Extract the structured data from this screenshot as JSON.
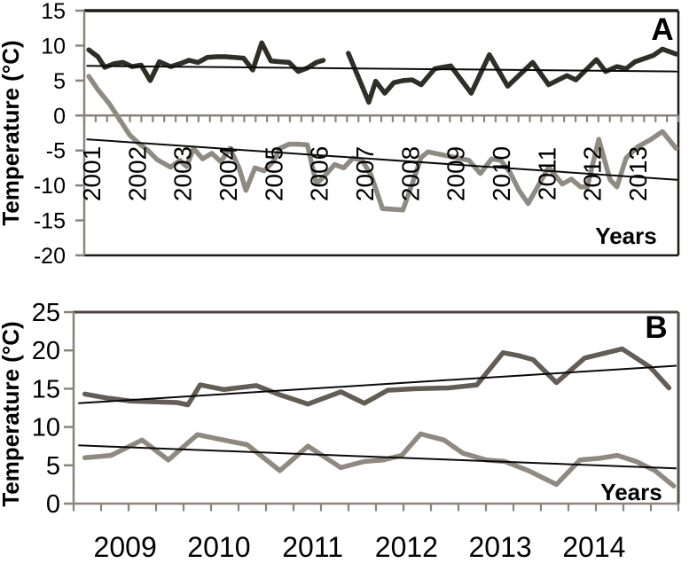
{
  "page": {
    "background": "#ffffff"
  },
  "figure": {
    "ylabel": "Temperature (°C)",
    "xlabel": "Years",
    "panel_letters": [
      "A",
      "B"
    ]
  },
  "chart_data": [
    {
      "type": "line",
      "panel_label": "A",
      "ylabel": "Temperature (°C)",
      "xlabel": "Years",
      "ylim": [
        -20,
        15
      ],
      "yticks": [
        15,
        10,
        5,
        0,
        -5,
        -10,
        -15,
        -20
      ],
      "xlim": [
        2000.9,
        2013.95
      ],
      "year_labels": [
        "2001",
        "2002",
        "2003",
        "2004",
        "2005",
        "2006",
        "2007",
        "2008",
        "2009",
        "2010",
        "2011",
        "2012",
        "2013"
      ],
      "x_axis_value": 0,
      "grid": false,
      "legend": null,
      "axis_color": "#8a8479",
      "series": [
        {
          "name": "upper-dark-temperature-line",
          "color": "#2f2f28",
          "width": 5.5,
          "points": [
            [
              2001.0,
              9.4
            ],
            [
              2001.2,
              8.4
            ],
            [
              2001.35,
              6.9
            ],
            [
              2001.55,
              7.4
            ],
            [
              2001.75,
              7.6
            ],
            [
              2001.95,
              7.0
            ],
            [
              2002.15,
              7.2
            ],
            [
              2002.35,
              5.0
            ],
            [
              2002.55,
              7.7
            ],
            [
              2002.8,
              7.0
            ],
            [
              2003.0,
              7.4
            ],
            [
              2003.2,
              7.9
            ],
            [
              2003.4,
              7.6
            ],
            [
              2003.6,
              8.3
            ],
            [
              2003.8,
              8.4
            ],
            [
              2004.0,
              8.4
            ],
            [
              2004.2,
              8.3
            ],
            [
              2004.4,
              8.2
            ],
            [
              2004.6,
              6.5
            ],
            [
              2004.8,
              10.4
            ],
            [
              2005.0,
              7.8
            ],
            [
              2005.2,
              7.7
            ],
            [
              2005.4,
              7.6
            ],
            [
              2005.6,
              6.3
            ],
            [
              2005.8,
              6.8
            ],
            [
              2006.0,
              7.6
            ],
            [
              2006.15,
              7.9
            ],
            null,
            [
              2006.7,
              8.9
            ],
            [
              2007.15,
              1.9
            ],
            [
              2007.3,
              4.9
            ],
            [
              2007.5,
              3.2
            ],
            [
              2007.7,
              4.7
            ],
            [
              2007.9,
              5.0
            ],
            [
              2008.1,
              5.1
            ],
            [
              2008.3,
              4.4
            ],
            [
              2008.6,
              6.7
            ],
            [
              2008.95,
              7.1
            ],
            [
              2009.4,
              3.2
            ],
            [
              2009.8,
              8.7
            ],
            [
              2010.2,
              4.2
            ],
            [
              2010.75,
              7.6
            ],
            [
              2011.1,
              4.4
            ],
            [
              2011.5,
              5.7
            ],
            [
              2011.7,
              5.1
            ],
            [
              2012.15,
              8.0
            ],
            [
              2012.35,
              6.3
            ],
            [
              2012.6,
              7.0
            ],
            [
              2012.8,
              6.7
            ],
            [
              2013.0,
              7.7
            ],
            [
              2013.4,
              8.6
            ],
            [
              2013.6,
              9.5
            ],
            [
              2013.9,
              8.8
            ]
          ]
        },
        {
          "name": "lower-gray-temperature-line",
          "color": "#908b82",
          "width": 5.5,
          "points": [
            [
              2001.0,
              5.6
            ],
            [
              2001.2,
              3.7
            ],
            [
              2001.45,
              1.7
            ],
            [
              2001.7,
              -0.8
            ],
            [
              2001.9,
              -2.8
            ],
            [
              2002.1,
              -4.0
            ],
            [
              2002.3,
              -5.0
            ],
            [
              2002.5,
              -6.3
            ],
            [
              2002.8,
              -7.4
            ],
            [
              2003.0,
              -6.4
            ],
            [
              2003.15,
              -7.3
            ],
            [
              2003.3,
              -4.7
            ],
            [
              2003.5,
              -6.2
            ],
            [
              2003.7,
              -5.4
            ],
            [
              2003.9,
              -6.6
            ],
            [
              2004.1,
              -4.7
            ],
            [
              2004.3,
              -7.5
            ],
            [
              2004.45,
              -10.7
            ],
            [
              2004.65,
              -7.5
            ],
            [
              2004.85,
              -7.9
            ],
            [
              2005.05,
              -6.6
            ],
            [
              2005.2,
              -4.7
            ],
            [
              2005.4,
              -4.1
            ],
            [
              2005.6,
              -4.1
            ],
            [
              2005.8,
              -4.2
            ],
            [
              2006.0,
              -9.8
            ],
            [
              2006.2,
              -8.5
            ],
            [
              2006.4,
              -7.0
            ],
            [
              2006.6,
              -7.5
            ],
            [
              2006.8,
              -6.1
            ],
            [
              2007.0,
              -6.4
            ],
            [
              2007.2,
              -8.5
            ],
            [
              2007.45,
              -13.3
            ],
            [
              2007.9,
              -13.5
            ],
            [
              2008.15,
              -8.9
            ],
            [
              2008.3,
              -6.0
            ],
            [
              2008.45,
              -5.2
            ],
            [
              2008.75,
              -5.6
            ],
            [
              2009.05,
              -6.0
            ],
            [
              2009.35,
              -6.4
            ],
            [
              2009.6,
              -8.3
            ],
            [
              2009.85,
              -6.2
            ],
            [
              2010.05,
              -6.4
            ],
            [
              2010.25,
              -8.1
            ],
            [
              2010.45,
              -10.7
            ],
            [
              2010.65,
              -12.6
            ],
            [
              2011.1,
              -7.4
            ],
            [
              2011.4,
              -9.8
            ],
            [
              2011.6,
              -9.1
            ],
            [
              2011.8,
              -10.2
            ],
            [
              2011.95,
              -10.2
            ],
            [
              2012.2,
              -3.4
            ],
            [
              2012.45,
              -9.2
            ],
            [
              2012.6,
              -10.2
            ],
            [
              2012.8,
              -6.1
            ],
            [
              2013.05,
              -4.5
            ],
            [
              2013.35,
              -3.4
            ],
            [
              2013.6,
              -2.3
            ],
            [
              2013.9,
              -4.7
            ]
          ]
        }
      ],
      "trendlines": [
        {
          "name": "upper-series-trendline",
          "color": "#0a0a0a",
          "width": 2,
          "points": [
            [
              2000.95,
              7.1
            ],
            [
              2013.93,
              6.3
            ]
          ]
        },
        {
          "name": "lower-series-trendline",
          "color": "#0a0a0a",
          "width": 2,
          "points": [
            [
              2000.95,
              -3.4
            ],
            [
              2013.93,
              -9.2
            ]
          ]
        }
      ]
    },
    {
      "type": "line",
      "panel_label": "B",
      "ylabel": "Temperature (°C)",
      "xlabel": "Years",
      "ylim": [
        0,
        25
      ],
      "yticks": [
        25,
        20,
        15,
        10,
        5,
        0
      ],
      "xlim": [
        2008.45,
        2014.9
      ],
      "year_labels": [
        "2009",
        "2010",
        "2011",
        "2012",
        "2013",
        "2014"
      ],
      "x_axis_value": 0,
      "grid": false,
      "legend": null,
      "axis_color": "#8a8479",
      "series": [
        {
          "name": "upper-dark-temperature-line",
          "color": "#635d55",
          "width": 5.5,
          "points": [
            [
              2008.57,
              14.3
            ],
            [
              2008.8,
              13.8
            ],
            [
              2009.05,
              13.4
            ],
            [
              2009.3,
              13.3
            ],
            [
              2009.55,
              13.2
            ],
            [
              2009.67,
              12.9
            ],
            [
              2009.8,
              15.5
            ],
            [
              2010.05,
              14.9
            ],
            [
              2010.4,
              15.4
            ],
            [
              2010.65,
              14.2
            ],
            [
              2010.95,
              13.0
            ],
            [
              2011.3,
              14.6
            ],
            [
              2011.55,
              13.1
            ],
            [
              2011.8,
              14.8
            ],
            [
              2012.1,
              15.0
            ],
            [
              2012.45,
              15.1
            ],
            [
              2012.75,
              15.5
            ],
            [
              2013.03,
              19.7
            ],
            [
              2013.2,
              19.3
            ],
            [
              2013.35,
              18.8
            ],
            [
              2013.6,
              15.8
            ],
            [
              2013.9,
              19.0
            ],
            [
              2014.1,
              19.6
            ],
            [
              2014.3,
              20.2
            ],
            [
              2014.6,
              17.8
            ],
            [
              2014.8,
              15.1
            ]
          ]
        },
        {
          "name": "lower-gray-temperature-line",
          "color": "#8f897f",
          "width": 5.5,
          "points": [
            [
              2008.57,
              6.0
            ],
            [
              2008.85,
              6.3
            ],
            [
              2009.18,
              8.3
            ],
            [
              2009.46,
              5.7
            ],
            [
              2009.77,
              9.0
            ],
            [
              2010.05,
              8.3
            ],
            [
              2010.3,
              7.7
            ],
            [
              2010.65,
              4.3
            ],
            [
              2010.95,
              7.5
            ],
            [
              2011.3,
              4.7
            ],
            [
              2011.55,
              5.5
            ],
            [
              2011.75,
              5.7
            ],
            [
              2011.95,
              6.3
            ],
            [
              2012.15,
              9.1
            ],
            [
              2012.4,
              8.3
            ],
            [
              2012.6,
              6.6
            ],
            [
              2012.85,
              5.7
            ],
            [
              2013.05,
              5.5
            ],
            [
              2013.3,
              4.3
            ],
            [
              2013.6,
              2.5
            ],
            [
              2013.85,
              5.7
            ],
            [
              2014.05,
              5.9
            ],
            [
              2014.25,
              6.3
            ],
            [
              2014.45,
              5.5
            ],
            [
              2014.65,
              4.3
            ],
            [
              2014.85,
              2.3
            ]
          ]
        }
      ],
      "trendlines": [
        {
          "name": "upper-series-trendline",
          "color": "#0a0a0a",
          "width": 2,
          "points": [
            [
              2008.5,
              13.1
            ],
            [
              2014.88,
              18.0
            ]
          ]
        },
        {
          "name": "lower-series-trendline",
          "color": "#0a0a0a",
          "width": 2,
          "points": [
            [
              2008.5,
              7.6
            ],
            [
              2014.88,
              4.6
            ]
          ]
        }
      ]
    }
  ]
}
